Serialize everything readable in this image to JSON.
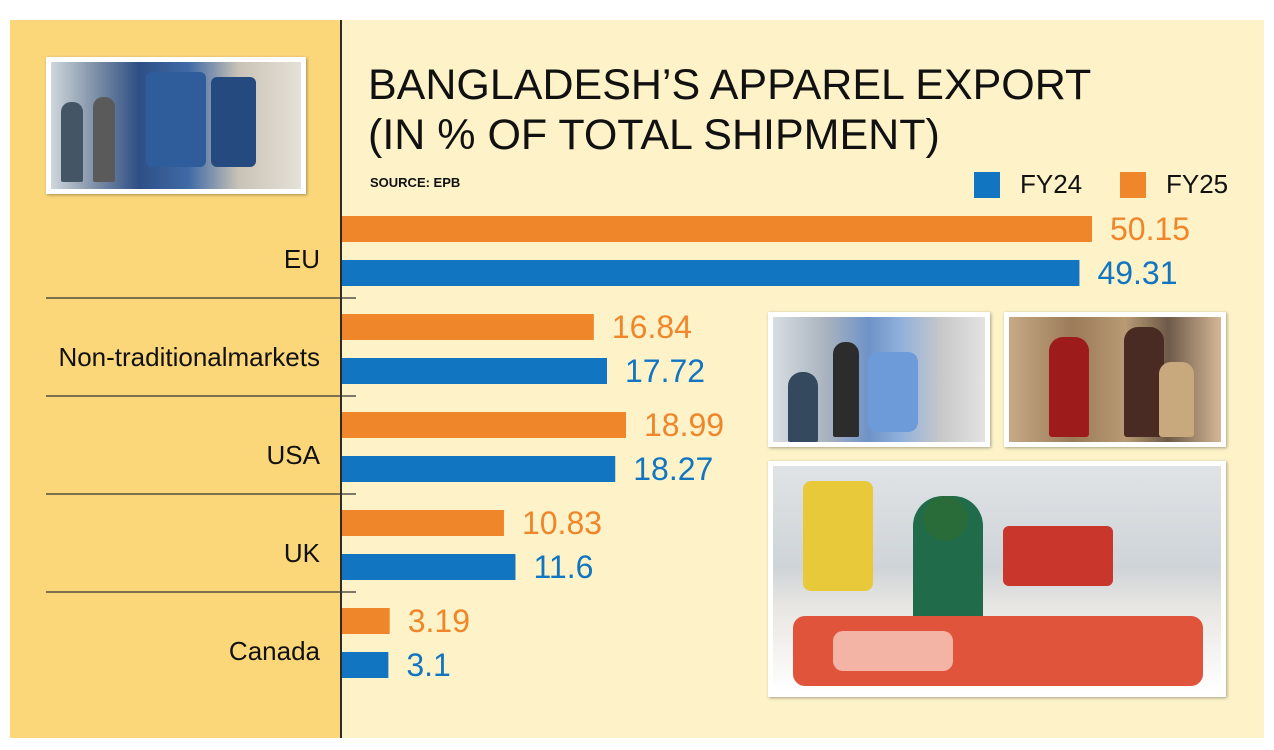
{
  "header": {
    "title_line1": "BANGLADESH’S APPAREL EXPORT",
    "title_line2": "(IN % OF TOTAL SHIPMENT)",
    "source": "SOURCE: EPB"
  },
  "legend": [
    {
      "label": "FY24",
      "color": "#1175c2"
    },
    {
      "label": "FY25",
      "color": "#f0862a"
    }
  ],
  "chart_data": {
    "type": "bar",
    "orientation": "horizontal",
    "title": "BANGLADESH’S APPAREL EXPORT (IN % OF TOTAL SHIPMENT)",
    "categories": [
      "EU",
      "Non-traditionalmarkets",
      "USA",
      "UK",
      "Canada"
    ],
    "series": [
      {
        "name": "FY25",
        "color": "#f0862a",
        "values": [
          50.15,
          16.84,
          18.99,
          10.83,
          3.19
        ],
        "labels": [
          "50.15",
          "16.84",
          "18.99",
          "10.83",
          "3.19"
        ]
      },
      {
        "name": "FY24",
        "color": "#1175c2",
        "values": [
          49.31,
          17.72,
          18.27,
          11.6,
          3.1
        ],
        "labels": [
          "49.31",
          "17.72",
          "18.27",
          "11.6",
          "3.1"
        ]
      }
    ],
    "xlim": [
      0,
      50.15
    ],
    "grid": false,
    "legend_position": "top-right"
  },
  "photos": [
    {
      "name": "denim-shop-photo",
      "desc": "photo"
    },
    {
      "name": "fair-visitors-photo",
      "desc": "photo"
    },
    {
      "name": "mannequins-photo",
      "desc": "photo"
    },
    {
      "name": "factory-worker-photo",
      "desc": "photo"
    }
  ]
}
